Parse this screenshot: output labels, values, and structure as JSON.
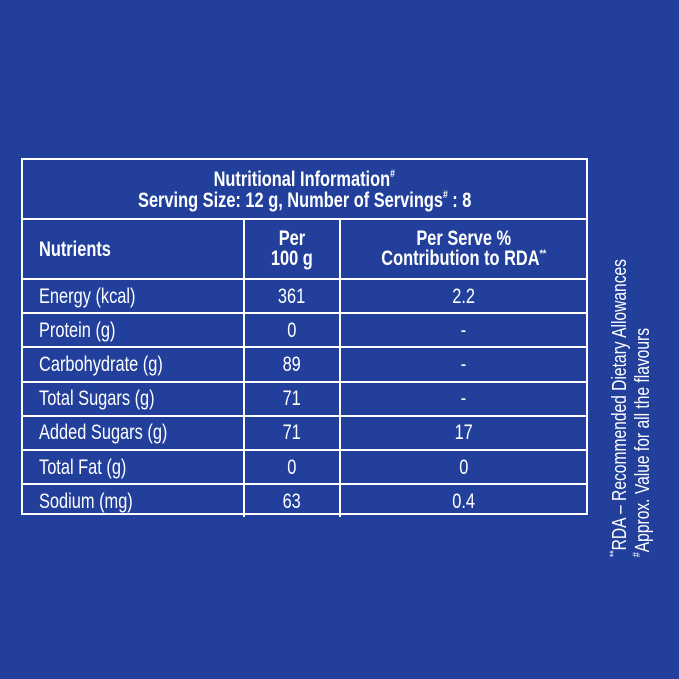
{
  "title": "Nutritional Information",
  "title_mark": "#",
  "serving_prefix": "Serving Size: 12 g, Number of Servings",
  "serving_mark": "#",
  "serving_suffix": " : 8",
  "columns": {
    "nutrients": "Nutrients",
    "per100_line1": "Per",
    "per100_line2": "100 g",
    "rda_line1": "Per Serve %",
    "rda_line2": "Contribution to RDA",
    "rda_mark": "**"
  },
  "rows": [
    {
      "nutrient": "Energy (kcal)",
      "per100": "361",
      "rda": "2.2"
    },
    {
      "nutrient": "Protein (g)",
      "per100": "0",
      "rda": "-"
    },
    {
      "nutrient": "Carbohydrate (g)",
      "per100": "89",
      "rda": "-"
    },
    {
      "nutrient": "Total Sugars (g)",
      "per100": "71",
      "rda": "-"
    },
    {
      "nutrient": "Added Sugars (g)",
      "per100": "71",
      "rda": "17"
    },
    {
      "nutrient": "Total Fat (g)",
      "per100": "0",
      "rda": "0"
    },
    {
      "nutrient": "Sodium (mg)",
      "per100": "63",
      "rda": "0.4"
    }
  ],
  "footnotes": [
    {
      "mark": "**",
      "text": "RDA – Recommended Dietary Allowances"
    },
    {
      "mark": "#",
      "text": "Approx. Value for all the flavours"
    }
  ],
  "colors": {
    "background": "#213f9b",
    "text": "#ffffff"
  }
}
